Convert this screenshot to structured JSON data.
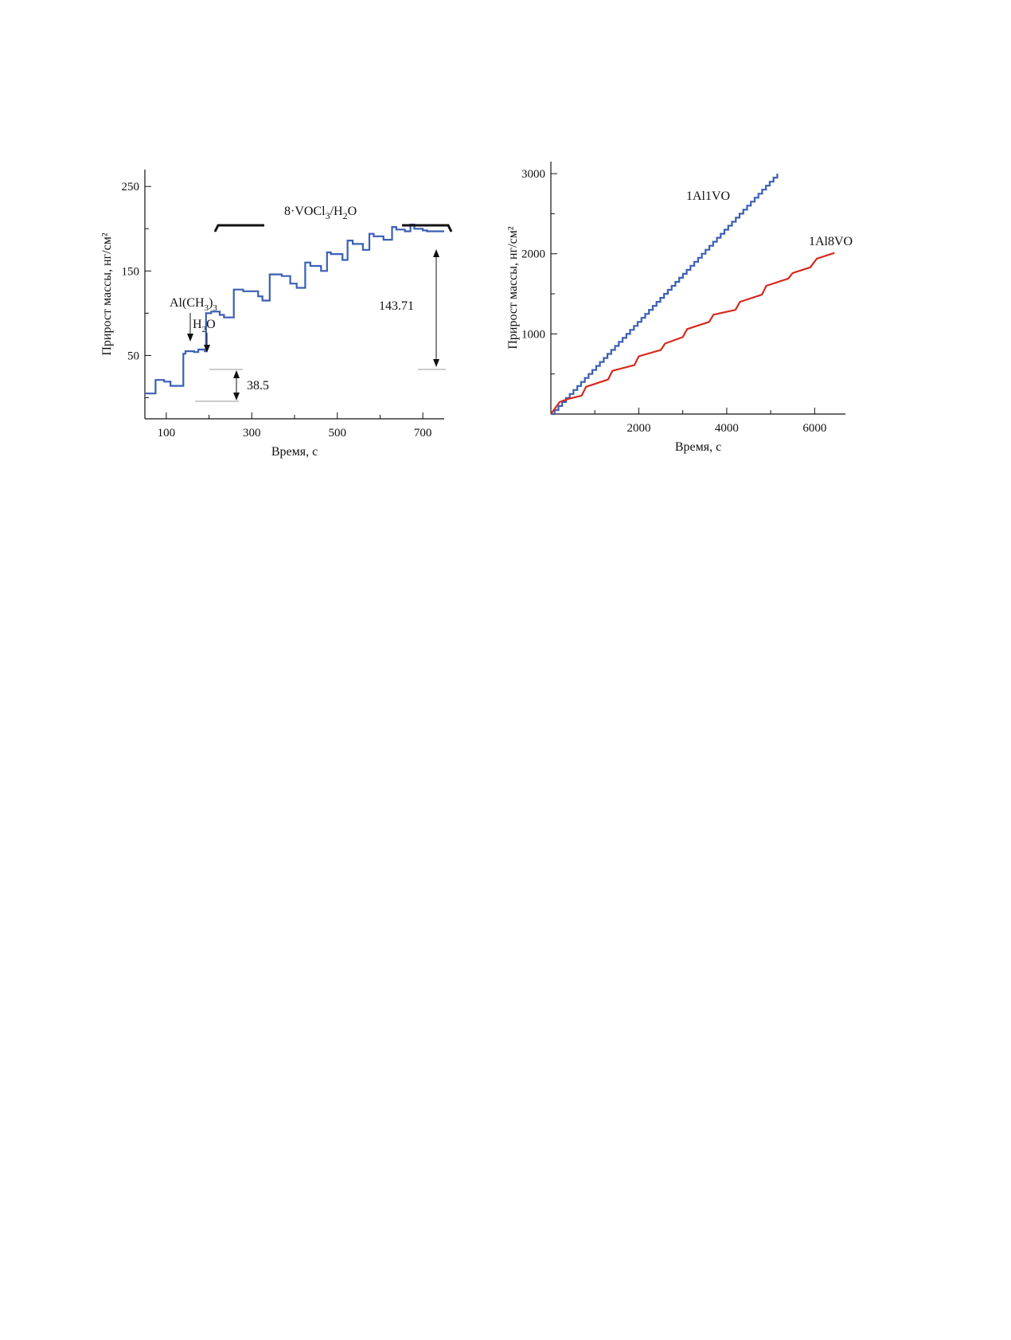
{
  "chart_data": [
    {
      "type": "line",
      "title": "",
      "xlabel": "Время, с",
      "ylabel": "Прирост массы, нг/см²",
      "xlim": [
        50,
        750
      ],
      "ylim": [
        -25,
        270
      ],
      "x_ticks": [
        100,
        300,
        500,
        700
      ],
      "x_minor_ticks": [
        200,
        400,
        600
      ],
      "y_ticks": [
        50,
        150,
        250
      ],
      "y_minor_ticks": [
        0,
        100,
        200
      ],
      "grid": false,
      "color": "#3a5fb4",
      "series": [
        {
          "x": [
            50,
            75,
            75,
            95,
            95,
            110,
            110,
            140,
            140,
            145,
            145,
            165,
            165,
            175,
            175,
            190,
            190,
            193,
            193,
            205,
            205,
            225,
            225,
            235,
            235,
            258,
            258,
            280,
            280,
            315,
            315,
            325,
            325,
            342,
            342,
            370,
            370,
            390,
            390,
            405,
            405,
            425,
            425,
            437,
            437,
            462,
            462,
            476,
            476,
            485,
            485,
            512,
            512,
            524,
            524,
            536,
            536,
            560,
            560,
            575,
            575,
            585,
            585,
            608,
            608,
            628,
            628,
            638,
            638,
            658,
            658,
            671,
            671,
            680,
            680,
            700,
            700,
            710,
            710,
            750
          ],
          "y": [
            5,
            5,
            21,
            21,
            19,
            19,
            14,
            14,
            52,
            52,
            55,
            55,
            54,
            54,
            57,
            57,
            55,
            55,
            100,
            100,
            102,
            102,
            98,
            98,
            95,
            95,
            128,
            128,
            126,
            126,
            120,
            120,
            115,
            115,
            146,
            146,
            144,
            144,
            135,
            135,
            130,
            130,
            160,
            160,
            156,
            156,
            150,
            150,
            172,
            172,
            170,
            170,
            163,
            163,
            186,
            186,
            182,
            182,
            175,
            175,
            194,
            194,
            191,
            191,
            187,
            187,
            202,
            202,
            199,
            199,
            197,
            197,
            205,
            205,
            200,
            200,
            198,
            198,
            197,
            197
          ]
        }
      ],
      "annotations": {
        "precursor_label": "Al(CH",
        "precursor_sub": "3",
        "precursor_close": ")",
        "precursor_sub2": "3",
        "water_label": "H",
        "water_sub": "2",
        "water_close": "O",
        "cycle_label": "8·VOCl",
        "cycle_sub": "3",
        "cycle_slash": "/H",
        "cycle_sub2": "2",
        "cycle_close": "O",
        "delta_small": "38.5",
        "delta_big": "143.71"
      }
    },
    {
      "type": "line",
      "title": "",
      "xlabel": "Время, с",
      "ylabel": "Прирост массы, нг/см²",
      "xlim": [
        0,
        6700
      ],
      "ylim": [
        0,
        3150
      ],
      "x_ticks": [
        2000,
        4000,
        6000
      ],
      "x_minor_ticks": [
        1000,
        3000,
        5000
      ],
      "y_ticks": [
        1000,
        2000,
        3000
      ],
      "y_minor_ticks": [
        500,
        1500,
        2500
      ],
      "grid": false,
      "series": [
        {
          "name": "1Al1VO",
          "color": "#3a5fb4",
          "x_start": 0,
          "x_end": 5150,
          "y_start": 0,
          "y_end": 3000,
          "steps": 60
        },
        {
          "name": "1Al8VO",
          "color": "#d42a1e",
          "x": [
            0,
            200,
            400,
            700,
            800,
            1300,
            1400,
            1900,
            2000,
            2500,
            2600,
            3000,
            3100,
            3600,
            3700,
            4200,
            4300,
            4800,
            4900,
            5400,
            5500,
            5900,
            6050,
            6450
          ],
          "y": [
            0,
            150,
            190,
            230,
            340,
            430,
            540,
            610,
            720,
            800,
            880,
            960,
            1060,
            1150,
            1240,
            1300,
            1400,
            1490,
            1600,
            1690,
            1760,
            1830,
            1940,
            2010
          ]
        }
      ]
    }
  ]
}
